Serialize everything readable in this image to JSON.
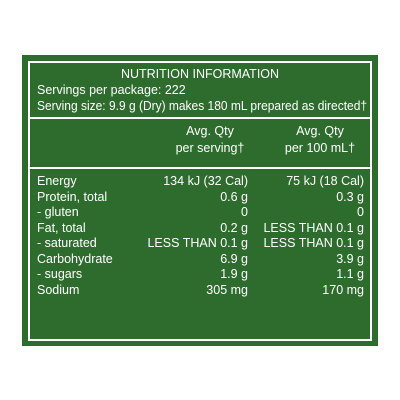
{
  "panel": {
    "title": "NUTRITION INFORMATION",
    "servings_per_package": "Servings per package: 222",
    "serving_size": "Serving size:  9.9 g (Dry) makes 180 mL prepared as directed†",
    "columns": {
      "per_serving": [
        "Avg. Qty",
        "per serving†"
      ],
      "per_100ml": [
        "Avg. Qty",
        "per 100 mL†"
      ]
    },
    "rows": [
      {
        "label": "Energy",
        "per_serving": "134 kJ (32 Cal)",
        "per_100ml": "75 kJ (18 Cal)"
      },
      {
        "label": "Protein, total",
        "per_serving": "0.6 g",
        "per_100ml": "0.3 g"
      },
      {
        "label": "- gluten",
        "per_serving": "0",
        "per_100ml": "0"
      },
      {
        "label": "Fat, total",
        "per_serving": "0.2 g",
        "per_100ml": "LESS THAN 0.1 g"
      },
      {
        "label": "- saturated",
        "per_serving": "LESS THAN 0.1 g",
        "per_100ml": "LESS THAN 0.1 g"
      },
      {
        "label": "Carbohydrate",
        "per_serving": "6.9 g",
        "per_100ml": "3.9 g"
      },
      {
        "label": "- sugars",
        "per_serving": "1.9 g",
        "per_100ml": "1.1 g"
      },
      {
        "label": "Sodium",
        "per_serving": "305 mg",
        "per_100ml": "170 mg"
      }
    ]
  },
  "colors": {
    "panel_background": "#2e6c2e",
    "text": "#ffffff",
    "page_background": "#ffffff"
  }
}
